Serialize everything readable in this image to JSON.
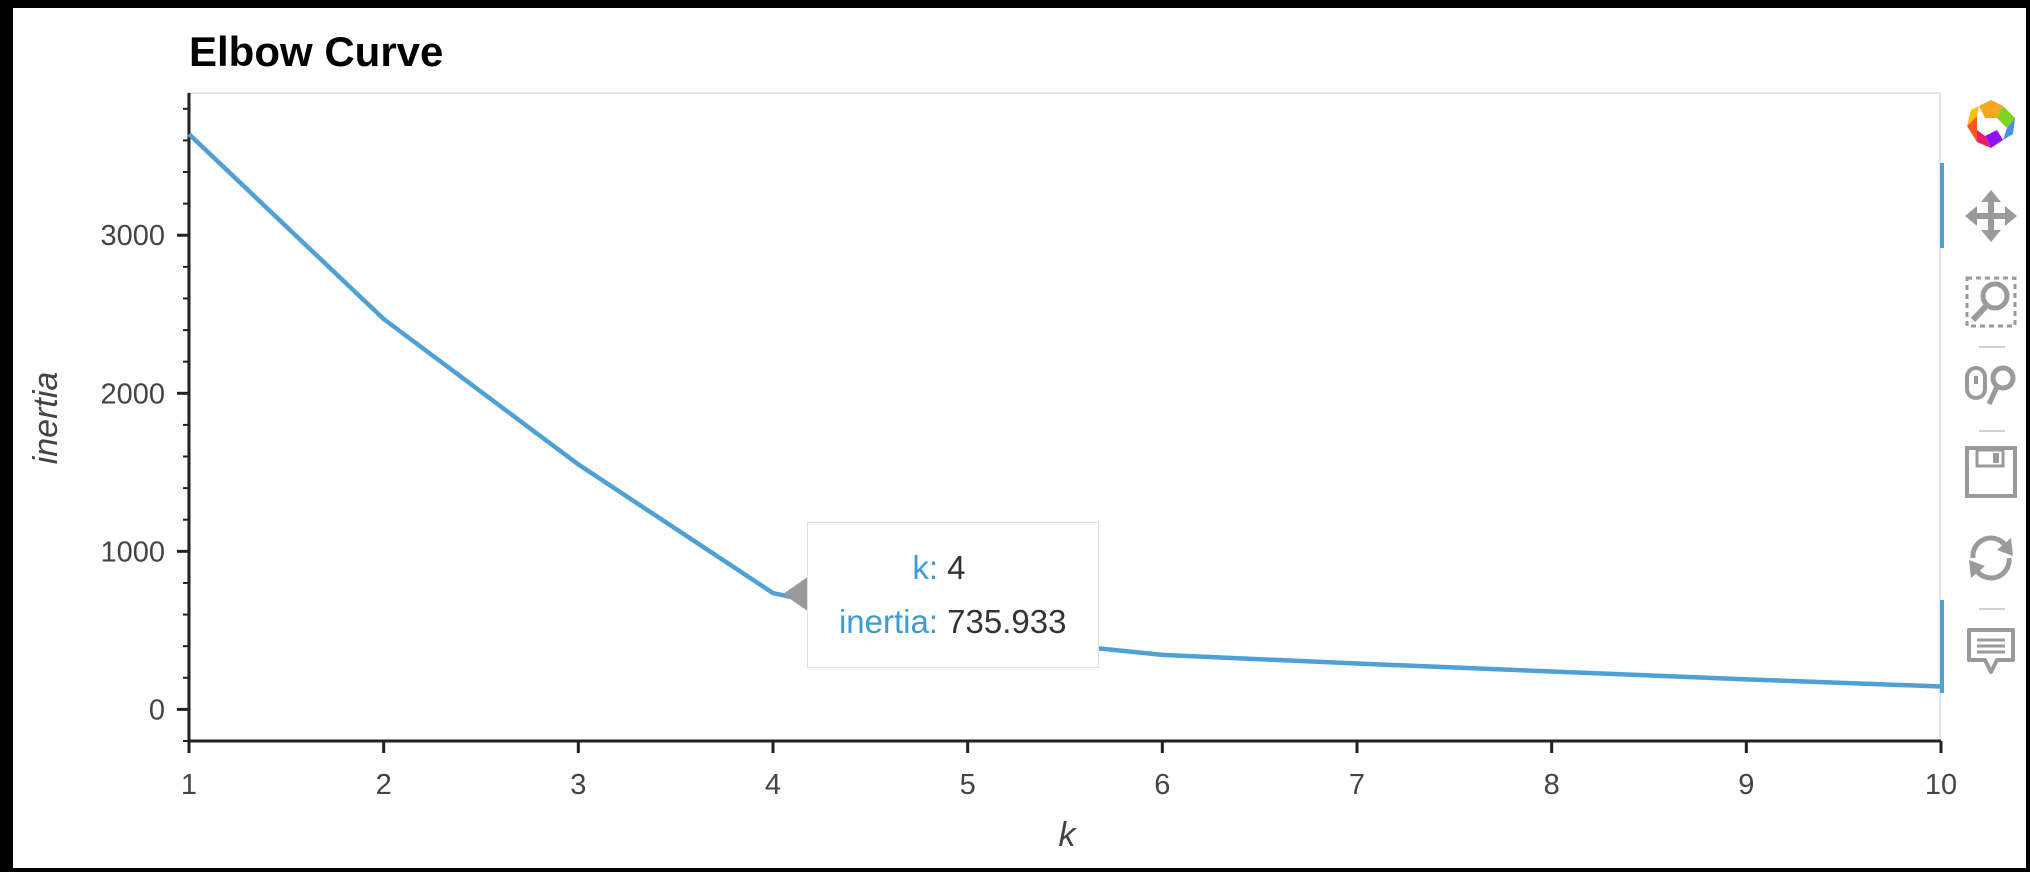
{
  "chart_data": {
    "type": "line",
    "title": "Elbow Curve",
    "xlabel": "k",
    "ylabel": "inertia",
    "x": [
      1,
      2,
      3,
      4,
      5,
      6,
      7,
      8,
      9,
      10
    ],
    "series": [
      {
        "values": [
          3640,
          2470,
          1550,
          735.933,
          470,
          345,
          290,
          240,
          190,
          145
        ]
      }
    ],
    "xlim": [
      1,
      10
    ],
    "ylim": [
      -200,
      3900
    ],
    "xticks": [
      1,
      2,
      3,
      4,
      5,
      6,
      7,
      8,
      9,
      10
    ],
    "yticks": [
      0,
      1000,
      2000,
      3000
    ],
    "grid": false,
    "line_color": "#4ea0d5",
    "tooltip": {
      "k_label": "k:",
      "k_value": "4",
      "inertia_label": "inertia:",
      "inertia_value": "735.933"
    }
  },
  "toolbar": {
    "tools": [
      {
        "name": "bokeh-logo-icon"
      },
      {
        "name": "pan-icon",
        "active": true
      },
      {
        "name": "box-zoom-icon"
      },
      {
        "name": "wheel-zoom-icon"
      },
      {
        "name": "save-icon"
      },
      {
        "name": "reset-icon"
      },
      {
        "name": "hover-icon",
        "active": true
      }
    ]
  }
}
